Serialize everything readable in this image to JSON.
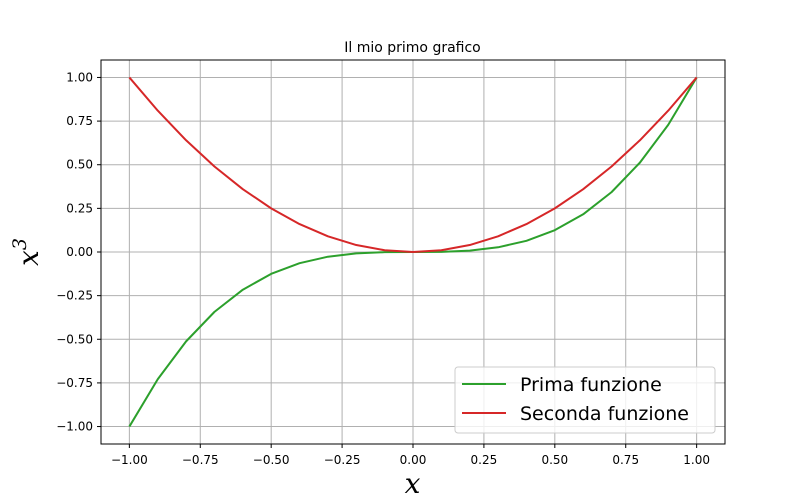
{
  "chart_data": {
    "type": "line",
    "title": "Il mio primo grafico",
    "xlabel": "x",
    "ylabel": "x",
    "ylabel_superscript": "3",
    "xlim": [
      -1.1,
      1.1
    ],
    "ylim": [
      -1.1,
      1.1
    ],
    "xticks": [
      -1.0,
      -0.75,
      -0.5,
      -0.25,
      0.0,
      0.25,
      0.5,
      0.75,
      1.0
    ],
    "xtick_labels": [
      "−1.00",
      "−0.75",
      "−0.50",
      "−0.25",
      "0.00",
      "0.25",
      "0.50",
      "0.75",
      "1.00"
    ],
    "yticks": [
      -1.0,
      -0.75,
      -0.5,
      -0.25,
      0.0,
      0.25,
      0.5,
      0.75,
      1.0
    ],
    "ytick_labels": [
      "−1.00",
      "−0.75",
      "−0.50",
      "−0.25",
      "0.00",
      "0.25",
      "0.50",
      "0.75",
      "1.00"
    ],
    "grid": true,
    "legend_position": "bottom-right",
    "x": [
      -1.0,
      -0.9,
      -0.8,
      -0.7,
      -0.6,
      -0.5,
      -0.4,
      -0.3,
      -0.2,
      -0.1,
      0.0,
      0.1,
      0.2,
      0.3,
      0.4,
      0.5,
      0.6,
      0.7,
      0.8,
      0.9,
      1.0
    ],
    "series": [
      {
        "name": "Prima funzione",
        "color": "#2ca02c",
        "values": [
          -1.0,
          -0.729,
          -0.512,
          -0.343,
          -0.216,
          -0.125,
          -0.064,
          -0.027,
          -0.008,
          -0.001,
          0.0,
          0.001,
          0.008,
          0.027,
          0.064,
          0.125,
          0.216,
          0.343,
          0.512,
          0.729,
          1.0
        ]
      },
      {
        "name": "Seconda funzione",
        "color": "#d62728",
        "values": [
          1.0,
          0.81,
          0.64,
          0.49,
          0.36,
          0.25,
          0.16,
          0.09,
          0.04,
          0.01,
          0.0,
          0.01,
          0.04,
          0.09,
          0.16,
          0.25,
          0.36,
          0.49,
          0.64,
          0.81,
          1.0
        ]
      }
    ]
  }
}
